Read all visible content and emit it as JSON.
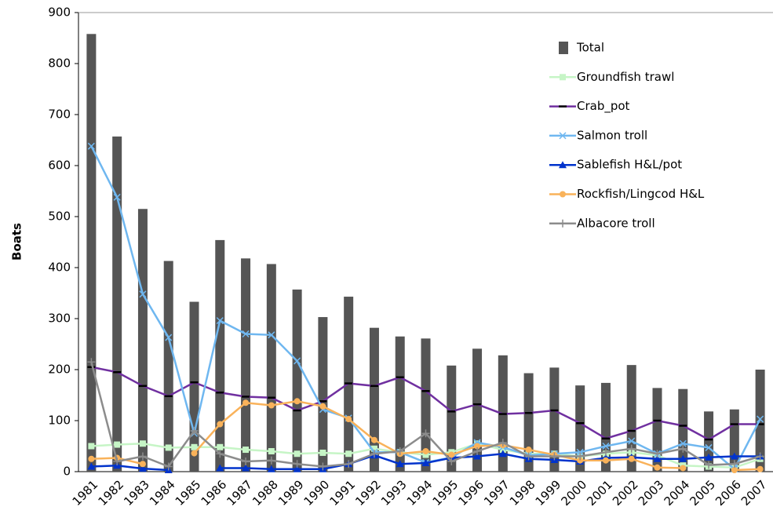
{
  "chart_data": {
    "type": "bar-line",
    "ylabel": "Boats",
    "categories": [
      "1981",
      "1982",
      "1983",
      "1984",
      "1985",
      "1986",
      "1987",
      "1988",
      "1989",
      "1990",
      "1991",
      "1992",
      "1993",
      "1994",
      "1995",
      "1996",
      "1997",
      "1998",
      "1999",
      "2000",
      "2001",
      "2002",
      "2003",
      "2004",
      "2005",
      "2006",
      "2007"
    ],
    "ylim": [
      0,
      900
    ],
    "yticks": [
      0,
      100,
      200,
      300,
      400,
      500,
      600,
      700,
      800,
      900
    ],
    "series": [
      {
        "name": "Total",
        "type": "bar",
        "color": "#555555",
        "values": [
          858,
          657,
          515,
          413,
          333,
          454,
          418,
          407,
          357,
          303,
          343,
          282,
          265,
          261,
          208,
          241,
          228,
          193,
          204,
          169,
          174,
          209,
          164,
          162,
          118,
          122,
          200
        ]
      },
      {
        "name": "Groundfish trawl",
        "type": "line",
        "marker": "square",
        "color": "#c6f5c6",
        "values": [
          50,
          53,
          55,
          47,
          48,
          48,
          43,
          40,
          35,
          37,
          35,
          45,
          38,
          33,
          38,
          55,
          43,
          35,
          35,
          30,
          35,
          38,
          32,
          12,
          10,
          8,
          25
        ]
      },
      {
        "name": "Crab_pot",
        "type": "line",
        "marker": "dash",
        "color": "#7030a0",
        "values": [
          205,
          195,
          168,
          148,
          175,
          155,
          147,
          145,
          120,
          138,
          173,
          168,
          185,
          158,
          118,
          132,
          113,
          115,
          120,
          95,
          65,
          80,
          100,
          90,
          63,
          93,
          93
        ]
      },
      {
        "name": "Salmon troll",
        "type": "line",
        "marker": "x",
        "color": "#6fb7f0",
        "values": [
          638,
          538,
          348,
          263,
          75,
          296,
          270,
          268,
          217,
          122,
          105,
          38,
          38,
          18,
          28,
          57,
          48,
          32,
          35,
          38,
          50,
          60,
          35,
          55,
          47,
          5,
          103
        ]
      },
      {
        "name": "Sablefish H&L/pot",
        "type": "line",
        "marker": "triangle",
        "color": "#0033cc",
        "values": [
          10,
          12,
          6,
          3,
          null,
          7,
          7,
          5,
          5,
          5,
          15,
          32,
          15,
          17,
          27,
          30,
          35,
          25,
          23,
          20,
          27,
          28,
          25,
          25,
          28,
          30,
          30
        ]
      },
      {
        "name": "Rockfish/Lingcod H&L",
        "type": "line",
        "marker": "circle",
        "color": "#f9b25a",
        "values": [
          25,
          27,
          15,
          null,
          36,
          93,
          135,
          130,
          138,
          128,
          103,
          62,
          35,
          40,
          33,
          50,
          52,
          43,
          33,
          22,
          22,
          25,
          8,
          7,
          null,
          3,
          5
        ]
      },
      {
        "name": "Albacore troll",
        "type": "line",
        "marker": "plus",
        "color": "#8c8c8c",
        "values": [
          215,
          20,
          30,
          10,
          80,
          35,
          20,
          22,
          15,
          10,
          15,
          35,
          40,
          75,
          20,
          40,
          57,
          30,
          30,
          30,
          38,
          45,
          35,
          45,
          13,
          15,
          30
        ]
      }
    ]
  }
}
